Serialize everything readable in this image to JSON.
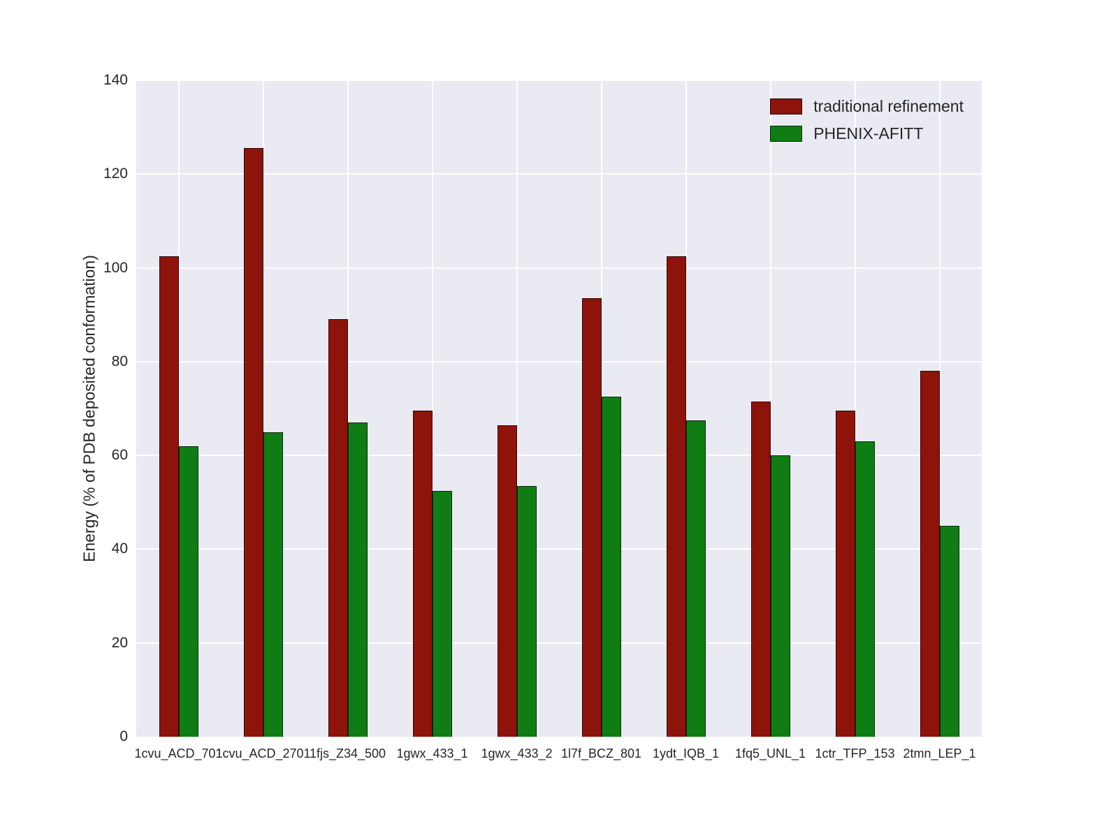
{
  "chart_data": {
    "type": "bar",
    "title": "",
    "xlabel": "",
    "ylabel": "Energy (% of PDB deposited conformation)",
    "ylim": [
      0,
      140
    ],
    "yticks": [
      0,
      20,
      40,
      60,
      80,
      100,
      120,
      140
    ],
    "grid": true,
    "legend_position": "upper right",
    "plot_background": "#eaeaf2",
    "categories": [
      "1cvu_ACD_701",
      "1cvu_ACD_2701",
      "1fjs_Z34_500",
      "1gwx_433_1",
      "1gwx_433_2",
      "1l7f_BCZ_801",
      "1ydt_IQB_1",
      "1fq5_UNL_1",
      "1ctr_TFP_153",
      "2tmn_LEP_1"
    ],
    "series": [
      {
        "name": "traditional refinement",
        "color": "#8e130a",
        "values": [
          102.5,
          125.5,
          89,
          69.5,
          66.5,
          93.5,
          102.5,
          71.5,
          69.5,
          78
        ]
      },
      {
        "name": "PHENIX-AFITT",
        "color": "#0f7d14",
        "values": [
          62,
          65,
          67,
          52.5,
          53.5,
          72.5,
          67.5,
          60,
          63,
          45
        ]
      }
    ]
  }
}
